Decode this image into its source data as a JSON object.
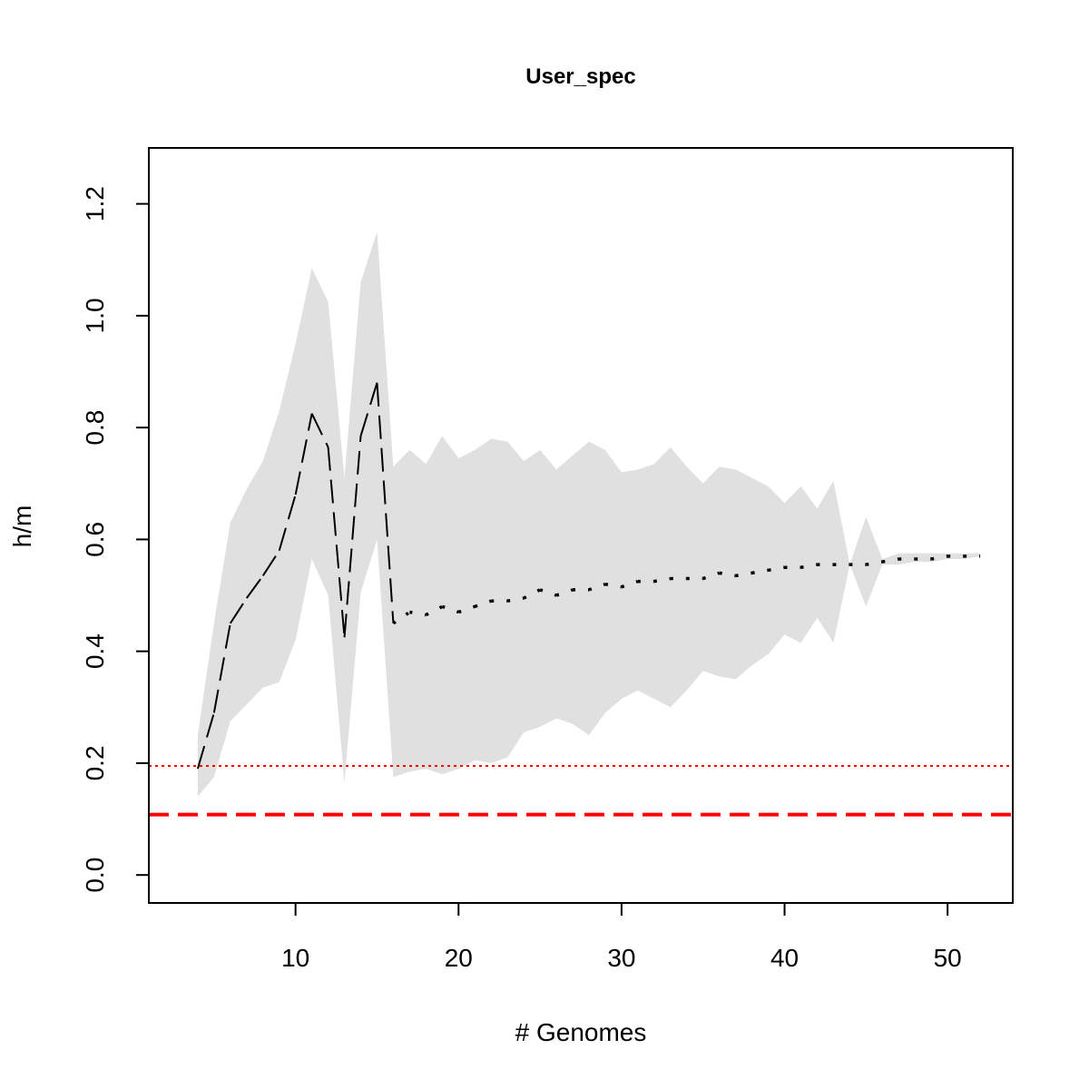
{
  "chart_data": {
    "type": "line",
    "title": "User_spec",
    "xlabel": "# Genomes",
    "ylabel": "h/m",
    "xlim": [
      1,
      54
    ],
    "ylim": [
      -0.05,
      1.3
    ],
    "x_ticks": [
      10,
      20,
      30,
      40,
      50
    ],
    "x_tick_labels": [
      "10",
      "20",
      "30",
      "40",
      "50"
    ],
    "y_ticks": [
      0.0,
      0.2,
      0.4,
      0.6,
      0.8,
      1.0,
      1.2
    ],
    "y_tick_labels": [
      "0.0",
      "0.2",
      "0.4",
      "0.6",
      "0.8",
      "1.0",
      "1.2"
    ],
    "grid": false,
    "legend": "none",
    "x": [
      4,
      5,
      6,
      7,
      8,
      9,
      10,
      11,
      12,
      13,
      14,
      15,
      16,
      17,
      18,
      19,
      20,
      21,
      22,
      23,
      24,
      25,
      26,
      27,
      28,
      29,
      30,
      31,
      32,
      33,
      34,
      35,
      36,
      37,
      38,
      39,
      40,
      41,
      42,
      43,
      44,
      45,
      46,
      47,
      48,
      49,
      50,
      51,
      52
    ],
    "series": [
      {
        "values": [
          0.19,
          0.29,
          0.45,
          0.495,
          0.535,
          0.58,
          0.68,
          0.825,
          0.765,
          0.425,
          0.785,
          0.88,
          0.45,
          0.47,
          0.465,
          0.48,
          0.47,
          0.48,
          0.49,
          0.49,
          0.495,
          0.51,
          0.5,
          0.51,
          0.51,
          0.52,
          0.515,
          0.525,
          0.525,
          0.53,
          0.53,
          0.53,
          0.54,
          0.535,
          0.54,
          0.545,
          0.55,
          0.55,
          0.555,
          0.555,
          0.555,
          0.555,
          0.56,
          0.565,
          0.565,
          0.565,
          0.57,
          0.57,
          0.57
        ],
        "color": "#000000",
        "style": "mixed: dashed/solid for x 4-16, dotted for x 16-52"
      }
    ],
    "ribbon": {
      "upper": [
        0.25,
        0.45,
        0.63,
        0.69,
        0.74,
        0.83,
        0.95,
        1.085,
        1.025,
        0.71,
        1.06,
        1.15,
        0.73,
        0.76,
        0.735,
        0.785,
        0.745,
        0.76,
        0.78,
        0.775,
        0.74,
        0.76,
        0.725,
        0.75,
        0.775,
        0.76,
        0.72,
        0.725,
        0.735,
        0.765,
        0.73,
        0.7,
        0.73,
        0.725,
        0.71,
        0.695,
        0.665,
        0.695,
        0.655,
        0.705,
        0.555,
        0.64,
        0.565,
        0.575,
        0.575,
        0.575,
        0.575,
        0.575,
        0.575
      ],
      "lower": [
        0.14,
        0.175,
        0.275,
        0.305,
        0.335,
        0.345,
        0.42,
        0.565,
        0.5,
        0.165,
        0.505,
        0.6,
        0.175,
        0.185,
        0.19,
        0.18,
        0.19,
        0.205,
        0.2,
        0.21,
        0.255,
        0.265,
        0.28,
        0.27,
        0.25,
        0.29,
        0.315,
        0.33,
        0.315,
        0.3,
        0.33,
        0.365,
        0.355,
        0.35,
        0.375,
        0.395,
        0.43,
        0.415,
        0.46,
        0.415,
        0.555,
        0.48,
        0.555,
        0.555,
        0.56,
        0.56,
        0.565,
        0.565,
        0.57
      ],
      "color": "#e0e0e0"
    },
    "reference_lines": [
      {
        "y": 0.195,
        "color": "#ff0000",
        "style": "dotted"
      },
      {
        "y": 0.108,
        "color": "#ff0000",
        "style": "dashed"
      }
    ]
  }
}
